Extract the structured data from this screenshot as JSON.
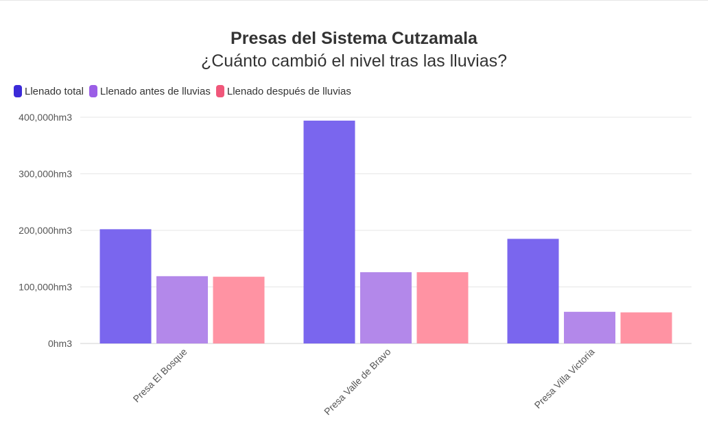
{
  "chart_data": {
    "type": "bar",
    "title": "Presas del Sistema Cutzamala",
    "subtitle": "¿Cuánto cambió el nivel tras las lluvias?",
    "categories": [
      "Presa El Bosque",
      "Presa Valle de Bravo",
      "Presa Villa Victoria"
    ],
    "series": [
      {
        "name": "Llenado total",
        "color": "#7a66ee",
        "legend_color": "#3b2ad8",
        "values": [
          202000,
          394000,
          185000
        ]
      },
      {
        "name": "Llenado antes de lluvias",
        "color": "#b388ea",
        "legend_color": "#9b5ee6",
        "values": [
          119000,
          126000,
          56000
        ]
      },
      {
        "name": "Llenado después de lluvias",
        "color": "#ff93a3",
        "legend_color": "#f0577a",
        "values": [
          118000,
          126000,
          55000
        ]
      }
    ],
    "ylim": [
      0,
      400000
    ],
    "yticks": [
      {
        "value": 0,
        "label": "0hm3"
      },
      {
        "value": 100000,
        "label": "100,000hm3"
      },
      {
        "value": 200000,
        "label": "200,000hm3"
      },
      {
        "value": 300000,
        "label": "300,000hm3"
      },
      {
        "value": 400000,
        "label": "400,000hm3"
      }
    ],
    "xlabel": "",
    "ylabel": "",
    "grid": true,
    "legend_position": "top-left"
  }
}
